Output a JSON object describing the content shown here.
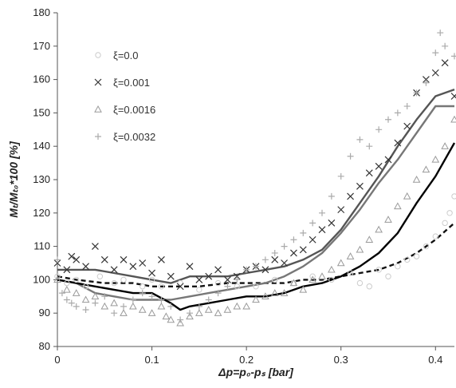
{
  "chart_data": {
    "type": "scatter",
    "xlabel": "Δp=p₀-pₛ [bar]",
    "ylabel": "Mₜ/Mₜ₀*100 [%]",
    "xlim": [
      0,
      0.42
    ],
    "ylim": [
      80,
      180
    ],
    "x_ticks": [
      0,
      0.1,
      0.2,
      0.3,
      0.4
    ],
    "x_tick_labels": [
      "0",
      "0.1",
      "0.2",
      "0.3",
      "0.4"
    ],
    "y_ticks": [
      80,
      90,
      100,
      110,
      120,
      130,
      140,
      150,
      160,
      170,
      180
    ],
    "y_tick_labels": [
      "80",
      "90",
      "100",
      "110",
      "120",
      "130",
      "140",
      "150",
      "160",
      "170",
      "180"
    ],
    "grid": false,
    "legend_position": "top-left",
    "series": [
      {
        "name": "ξ=0.0",
        "marker": "circle",
        "color": "#cccccc",
        "points": [
          [
            0.0,
            101
          ],
          [
            0.01,
            99
          ],
          [
            0.02,
            100
          ],
          [
            0.03,
            98
          ],
          [
            0.045,
            101
          ],
          [
            0.06,
            99
          ],
          [
            0.07,
            100
          ],
          [
            0.09,
            98
          ],
          [
            0.1,
            100
          ],
          [
            0.11,
            98
          ],
          [
            0.13,
            99
          ],
          [
            0.15,
            97
          ],
          [
            0.17,
            99
          ],
          [
            0.19,
            98
          ],
          [
            0.21,
            98
          ],
          [
            0.23,
            100
          ],
          [
            0.25,
            99
          ],
          [
            0.27,
            101
          ],
          [
            0.29,
            100
          ],
          [
            0.31,
            102
          ],
          [
            0.32,
            99
          ],
          [
            0.33,
            98
          ],
          [
            0.34,
            103
          ],
          [
            0.35,
            101
          ],
          [
            0.36,
            104
          ],
          [
            0.37,
            106
          ],
          [
            0.38,
            107
          ],
          [
            0.39,
            110
          ],
          [
            0.4,
            113
          ],
          [
            0.41,
            117
          ],
          [
            0.415,
            120
          ],
          [
            0.42,
            125
          ]
        ]
      },
      {
        "name": "ξ=0.001",
        "marker": "x",
        "color": "#333333",
        "points": [
          [
            0.0,
            105
          ],
          [
            0.01,
            103
          ],
          [
            0.015,
            107
          ],
          [
            0.02,
            106
          ],
          [
            0.03,
            104
          ],
          [
            0.04,
            110
          ],
          [
            0.05,
            106
          ],
          [
            0.06,
            103
          ],
          [
            0.07,
            106
          ],
          [
            0.08,
            104
          ],
          [
            0.09,
            105
          ],
          [
            0.1,
            102
          ],
          [
            0.11,
            106
          ],
          [
            0.12,
            101
          ],
          [
            0.13,
            98
          ],
          [
            0.14,
            104
          ],
          [
            0.15,
            100
          ],
          [
            0.16,
            101
          ],
          [
            0.17,
            103
          ],
          [
            0.18,
            100
          ],
          [
            0.19,
            101
          ],
          [
            0.2,
            103
          ],
          [
            0.21,
            104
          ],
          [
            0.22,
            103
          ],
          [
            0.23,
            106
          ],
          [
            0.24,
            105
          ],
          [
            0.25,
            108
          ],
          [
            0.26,
            109
          ],
          [
            0.27,
            112
          ],
          [
            0.28,
            115
          ],
          [
            0.29,
            117
          ],
          [
            0.3,
            121
          ],
          [
            0.31,
            125
          ],
          [
            0.32,
            128
          ],
          [
            0.33,
            132
          ],
          [
            0.34,
            134
          ],
          [
            0.35,
            136
          ],
          [
            0.36,
            141
          ],
          [
            0.37,
            146
          ],
          [
            0.38,
            156
          ],
          [
            0.39,
            160
          ],
          [
            0.4,
            162
          ],
          [
            0.41,
            165
          ],
          [
            0.42,
            155
          ]
        ]
      },
      {
        "name": "ξ=0.0016",
        "marker": "triangle",
        "color": "#9a9a9a",
        "points": [
          [
            0.0,
            100
          ],
          [
            0.01,
            97
          ],
          [
            0.02,
            96
          ],
          [
            0.03,
            94
          ],
          [
            0.04,
            95
          ],
          [
            0.05,
            92
          ],
          [
            0.06,
            93
          ],
          [
            0.07,
            90
          ],
          [
            0.08,
            92
          ],
          [
            0.09,
            91
          ],
          [
            0.1,
            90
          ],
          [
            0.11,
            92
          ],
          [
            0.115,
            89
          ],
          [
            0.12,
            88
          ],
          [
            0.13,
            87
          ],
          [
            0.14,
            89
          ],
          [
            0.15,
            90
          ],
          [
            0.16,
            91
          ],
          [
            0.17,
            90
          ],
          [
            0.18,
            91
          ],
          [
            0.19,
            92
          ],
          [
            0.2,
            92
          ],
          [
            0.21,
            94
          ],
          [
            0.22,
            95
          ],
          [
            0.23,
            96
          ],
          [
            0.24,
            96
          ],
          [
            0.25,
            99
          ],
          [
            0.26,
            97
          ],
          [
            0.27,
            100
          ],
          [
            0.28,
            101
          ],
          [
            0.29,
            103
          ],
          [
            0.3,
            105
          ],
          [
            0.31,
            107
          ],
          [
            0.32,
            109
          ],
          [
            0.33,
            112
          ],
          [
            0.34,
            115
          ],
          [
            0.35,
            118
          ],
          [
            0.36,
            122
          ],
          [
            0.37,
            125
          ],
          [
            0.38,
            130
          ],
          [
            0.39,
            133
          ],
          [
            0.4,
            136
          ],
          [
            0.41,
            140
          ],
          [
            0.42,
            148
          ]
        ]
      },
      {
        "name": "ξ=0.0032",
        "marker": "plus",
        "color": "#aaaaaa",
        "points": [
          [
            0.0,
            106
          ],
          [
            0.005,
            96
          ],
          [
            0.01,
            94
          ],
          [
            0.015,
            93
          ],
          [
            0.02,
            92
          ],
          [
            0.03,
            91
          ],
          [
            0.04,
            93
          ],
          [
            0.05,
            95
          ],
          [
            0.06,
            90
          ],
          [
            0.07,
            92
          ],
          [
            0.08,
            94
          ],
          [
            0.09,
            96
          ],
          [
            0.1,
            95
          ],
          [
            0.11,
            94
          ],
          [
            0.12,
            92
          ],
          [
            0.13,
            88
          ],
          [
            0.14,
            90
          ],
          [
            0.15,
            92
          ],
          [
            0.16,
            94
          ],
          [
            0.17,
            96
          ],
          [
            0.18,
            98
          ],
          [
            0.19,
            100
          ],
          [
            0.2,
            103
          ],
          [
            0.21,
            104
          ],
          [
            0.22,
            106
          ],
          [
            0.23,
            108
          ],
          [
            0.24,
            110
          ],
          [
            0.25,
            112
          ],
          [
            0.26,
            114
          ],
          [
            0.27,
            117
          ],
          [
            0.28,
            120
          ],
          [
            0.29,
            125
          ],
          [
            0.3,
            131
          ],
          [
            0.31,
            137
          ],
          [
            0.32,
            142
          ],
          [
            0.33,
            140
          ],
          [
            0.34,
            145
          ],
          [
            0.35,
            148
          ],
          [
            0.36,
            150
          ],
          [
            0.37,
            152
          ],
          [
            0.38,
            156
          ],
          [
            0.39,
            159
          ],
          [
            0.4,
            168
          ],
          [
            0.405,
            174
          ],
          [
            0.41,
            170
          ],
          [
            0.42,
            167
          ]
        ]
      }
    ],
    "trend_lines": [
      {
        "style": "dashed",
        "color": "#111111",
        "x": [
          0.0,
          0.02,
          0.05,
          0.08,
          0.1,
          0.12,
          0.15,
          0.18,
          0.2,
          0.22,
          0.24,
          0.26,
          0.28,
          0.3,
          0.32,
          0.34,
          0.36,
          0.38,
          0.4,
          0.42
        ],
        "y": [
          101,
          100,
          99,
          99,
          98,
          98,
          98,
          99,
          99,
          99,
          99,
          100,
          100,
          101,
          102,
          103,
          105,
          108,
          112,
          117
        ]
      },
      {
        "style": "solid",
        "color": "#555555",
        "x": [
          0.0,
          0.02,
          0.04,
          0.06,
          0.08,
          0.1,
          0.12,
          0.14,
          0.16,
          0.18,
          0.2,
          0.22,
          0.24,
          0.26,
          0.28,
          0.3,
          0.32,
          0.34,
          0.36,
          0.38,
          0.4,
          0.42
        ],
        "y": [
          103,
          103,
          103,
          102,
          101,
          100,
          99,
          101,
          101,
          101,
          102,
          103,
          104,
          106,
          109,
          115,
          123,
          131,
          140,
          148,
          155,
          157
        ]
      },
      {
        "style": "solid",
        "color": "#777777",
        "x": [
          0.0,
          0.02,
          0.04,
          0.06,
          0.08,
          0.1,
          0.12,
          0.14,
          0.16,
          0.18,
          0.2,
          0.22,
          0.24,
          0.26,
          0.28,
          0.3,
          0.32,
          0.34,
          0.36,
          0.38,
          0.4,
          0.42
        ],
        "y": [
          100,
          99,
          96,
          95,
          94,
          94,
          94,
          95,
          96,
          97,
          98,
          99,
          101,
          104,
          108,
          114,
          121,
          129,
          136,
          144,
          152,
          152
        ]
      },
      {
        "style": "solid",
        "color": "#000000",
        "x": [
          0.0,
          0.02,
          0.04,
          0.06,
          0.08,
          0.1,
          0.12,
          0.13,
          0.14,
          0.16,
          0.18,
          0.2,
          0.22,
          0.24,
          0.26,
          0.28,
          0.3,
          0.32,
          0.34,
          0.36,
          0.38,
          0.4,
          0.42
        ],
        "y": [
          100,
          99,
          98,
          97,
          96,
          96,
          93,
          91,
          92,
          93,
          94,
          95,
          95,
          96,
          98,
          99,
          101,
          104,
          108,
          114,
          123,
          131,
          141
        ]
      }
    ]
  }
}
